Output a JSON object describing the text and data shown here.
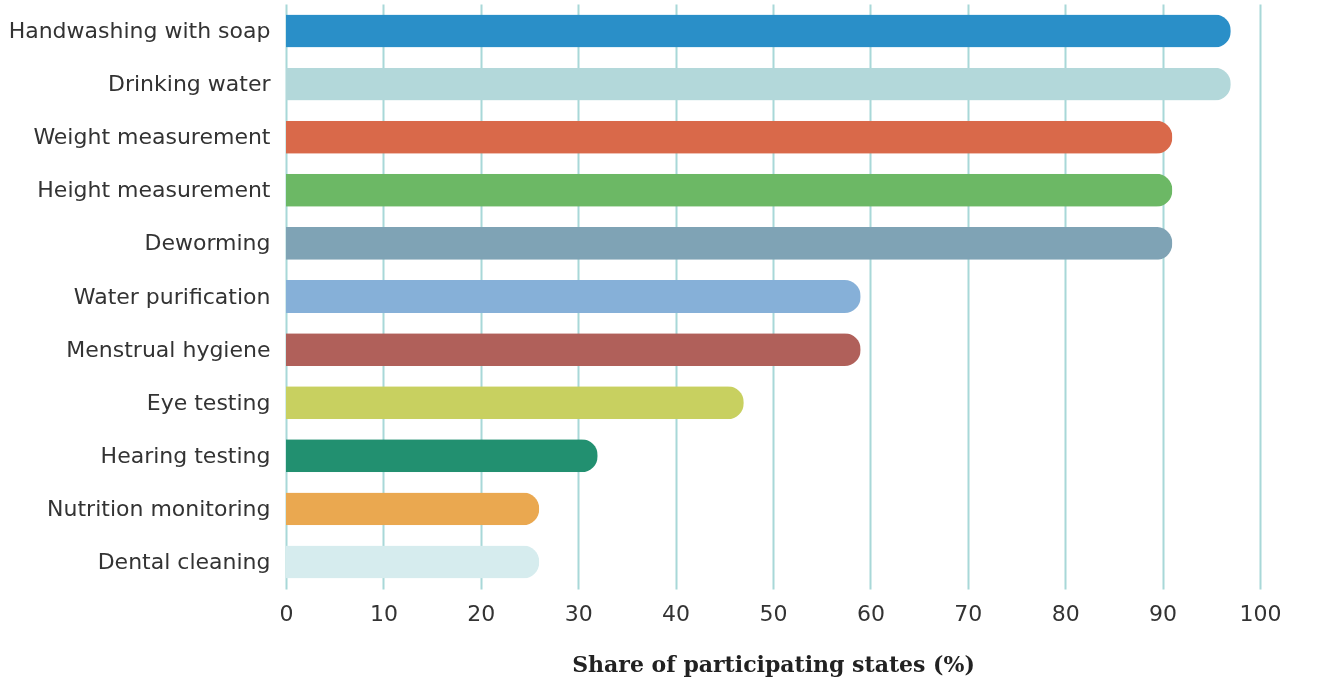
{
  "chart_data": {
    "type": "bar",
    "orientation": "horizontal",
    "xlabel": "Share of participating states (%)",
    "categories": [
      "Handwashing with soap",
      "Drinking water",
      "Weight measurement",
      "Height measurement",
      "Deworming",
      "Water purification",
      "Menstrual hygiene",
      "Eye testing",
      "Hearing testing",
      "Nutrition monitoring",
      "Dental cleaning"
    ],
    "values": [
      97,
      97,
      91,
      91,
      91,
      59,
      59,
      47,
      32,
      26,
      26
    ],
    "colors": [
      "#2a8fc8",
      "#b3d8da",
      "#d9694a",
      "#6cb865",
      "#7fa3b5",
      "#86b0d8",
      "#b0605a",
      "#c8d060",
      "#229070",
      "#eaa850",
      "#d6ecee"
    ],
    "xlim": [
      0,
      100
    ],
    "xticks": [
      0,
      10,
      20,
      30,
      40,
      50,
      60,
      70,
      80,
      90,
      100
    ],
    "grid": "x",
    "legend": false
  }
}
